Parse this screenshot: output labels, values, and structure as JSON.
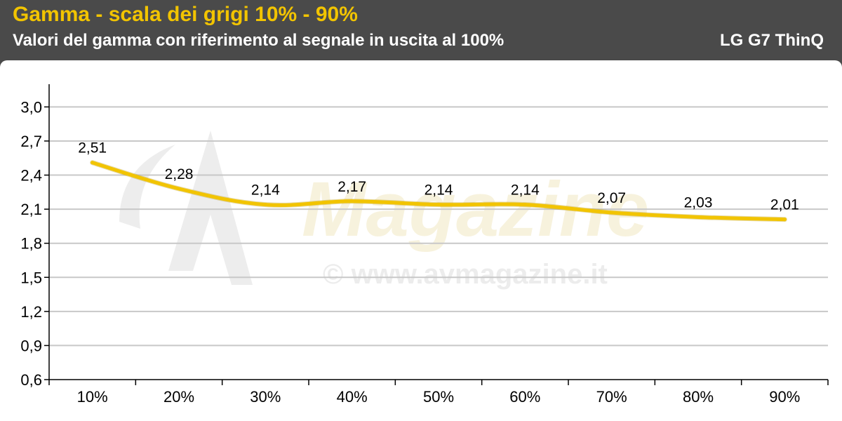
{
  "header": {
    "title": "Gamma - scala dei grigi 10% - 90%",
    "subtitle": "Valori del gamma con riferimento al segnale in uscita al 100%",
    "device": "LG G7 ThinQ"
  },
  "watermark": {
    "text": "© www.avmagazine.it",
    "logo_text": "Magazine"
  },
  "colors": {
    "title": "#f2c400",
    "header_bg": "#4a4a4a",
    "line": "#f2c400",
    "grid": "#c8c8c8"
  },
  "chart_data": {
    "type": "line",
    "categories": [
      "10%",
      "20%",
      "30%",
      "40%",
      "50%",
      "60%",
      "70%",
      "80%",
      "90%"
    ],
    "series": [
      {
        "values": [
          2.51,
          2.28,
          2.14,
          2.17,
          2.14,
          2.14,
          2.07,
          2.03,
          2.01
        ]
      }
    ],
    "data_labels": [
      "2,51",
      "2,28",
      "2,14",
      "2,17",
      "2,14",
      "2,14",
      "2,07",
      "2,03",
      "2,01"
    ],
    "y_ticks": [
      "0,6",
      "0,9",
      "1,2",
      "1,5",
      "1,8",
      "2,1",
      "2,4",
      "2,7",
      "3,0"
    ],
    "ylim": [
      0.6,
      3.2
    ],
    "grid": true,
    "smooth": true,
    "xlabel": "",
    "ylabel": ""
  }
}
